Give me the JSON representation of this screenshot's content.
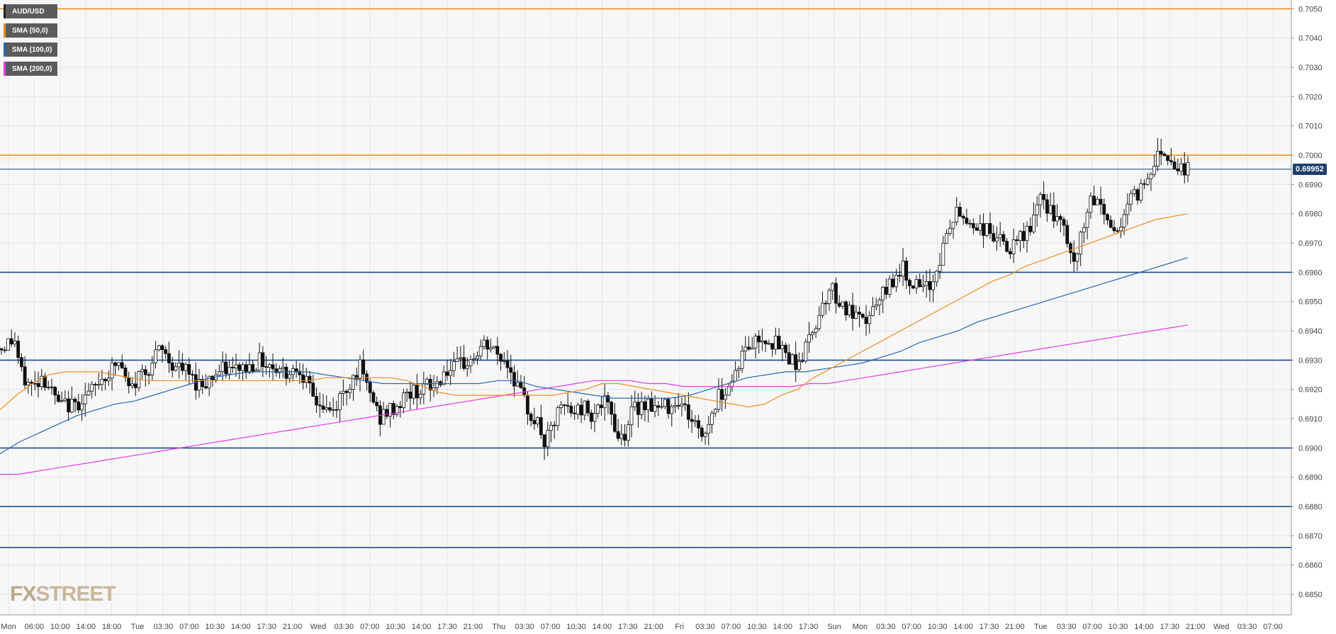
{
  "chart_data": {
    "type": "candlestick",
    "instrument": "AUD/USD",
    "ylim": [
      0.6843,
      0.7053
    ],
    "y_ticks": [
      "0.7050",
      "0.7040",
      "0.7030",
      "0.7020",
      "0.7010",
      "0.7000",
      "0.6990",
      "0.6980",
      "0.6970",
      "0.6960",
      "0.6950",
      "0.6940",
      "0.6930",
      "0.6920",
      "0.6910",
      "0.6900",
      "0.6890",
      "0.6880",
      "0.6870",
      "0.6860",
      "0.6850"
    ],
    "x_ticks": [
      "Mon",
      "06:00",
      "10:00",
      "14:00",
      "18:00",
      "Tue",
      "03:30",
      "07:00",
      "10:30",
      "14:00",
      "17:30",
      "21:00",
      "Wed",
      "03:30",
      "07:00",
      "10:30",
      "14:00",
      "17:30",
      "21:00",
      "Thu",
      "03:30",
      "07:00",
      "10:30",
      "14:00",
      "17:30",
      "21:00",
      "Fri",
      "03:30",
      "07:00",
      "10:30",
      "14:00",
      "17:30",
      "Sun",
      "Mon",
      "03:30",
      "07:00",
      "10:30",
      "14:00",
      "17:30",
      "21:00",
      "Tue",
      "03:30",
      "07:00",
      "10:30",
      "14:00",
      "17:30",
      "21:00",
      "Wed",
      "03:30",
      "07:00"
    ],
    "current_price": "0.69952",
    "current_value": 0.69952,
    "legend": [
      {
        "label": "AUD/USD",
        "color": "#222222"
      },
      {
        "label": "SMA (50,0)",
        "color": "#f08c1a"
      },
      {
        "label": "SMA (100,0)",
        "color": "#2a66b0"
      },
      {
        "label": "SMA (200,0)",
        "color": "#e63ce6"
      }
    ],
    "horizontal_levels": [
      {
        "value": 0.705,
        "color": "#f08c1a"
      },
      {
        "value": 0.7,
        "color": "#f08c1a"
      },
      {
        "value": 0.696,
        "color": "#1e4e8c"
      },
      {
        "value": 0.693,
        "color": "#1e4e8c"
      },
      {
        "value": 0.69,
        "color": "#1e4e8c"
      },
      {
        "value": 0.688,
        "color": "#1e4e8c"
      },
      {
        "value": 0.6866,
        "color": "#1e4e8c"
      }
    ],
    "close_path": [
      0.6934,
      0.6936,
      0.6937,
      0.6925,
      0.6922,
      0.6921,
      0.6925,
      0.6922,
      0.6917,
      0.6914,
      0.6915,
      0.6914,
      0.6917,
      0.6918,
      0.692,
      0.6924,
      0.6925,
      0.6928,
      0.6929,
      0.692,
      0.6921,
      0.6926,
      0.6927,
      0.693,
      0.6934,
      0.6931,
      0.6928,
      0.6927,
      0.6926,
      0.6923,
      0.6922,
      0.6923,
      0.6925,
      0.6926,
      0.6927,
      0.6926,
      0.6928,
      0.6927,
      0.6929,
      0.693,
      0.6929,
      0.6928,
      0.6927,
      0.6926,
      0.6927,
      0.6928,
      0.6922,
      0.6917,
      0.6915,
      0.6913,
      0.6912,
      0.6917,
      0.692,
      0.6924,
      0.6928,
      0.6921,
      0.6917,
      0.691,
      0.6912,
      0.6913,
      0.6915,
      0.6918,
      0.6919,
      0.692,
      0.6921,
      0.692,
      0.6923,
      0.6927,
      0.6926,
      0.6928,
      0.6929,
      0.693,
      0.6933,
      0.6935,
      0.6934,
      0.6931,
      0.693,
      0.6926,
      0.692,
      0.6915,
      0.6911,
      0.6908,
      0.6901,
      0.6906,
      0.6912,
      0.6914,
      0.6912,
      0.6913,
      0.6914,
      0.6912,
      0.6914,
      0.6915,
      0.6912,
      0.6904,
      0.6905,
      0.6912,
      0.6914,
      0.6916,
      0.6915,
      0.6913,
      0.6914,
      0.6915,
      0.6917,
      0.6914,
      0.691,
      0.6907,
      0.6904,
      0.6911,
      0.6917,
      0.692,
      0.6922,
      0.6928,
      0.6933,
      0.6935,
      0.6937,
      0.6938,
      0.6937,
      0.6935,
      0.6933,
      0.6931,
      0.6929,
      0.6932,
      0.6938,
      0.6944,
      0.695,
      0.6955,
      0.6952,
      0.6948,
      0.6946,
      0.6944,
      0.6942,
      0.6946,
      0.6948,
      0.6952,
      0.6956,
      0.696,
      0.6961,
      0.6958,
      0.6955,
      0.6953,
      0.6955,
      0.696,
      0.6968,
      0.6975,
      0.698,
      0.6979,
      0.6977,
      0.6976,
      0.6975,
      0.6974,
      0.6972,
      0.697,
      0.6967,
      0.6969,
      0.6972,
      0.6975,
      0.698,
      0.6985,
      0.6982,
      0.6978,
      0.6975,
      0.697,
      0.696,
      0.6975,
      0.6982,
      0.6985,
      0.6983,
      0.6977,
      0.6973,
      0.6978,
      0.6984,
      0.6986,
      0.6989,
      0.6993,
      0.6999,
      0.7002,
      0.7,
      0.6997,
      0.6996,
      0.6995
    ],
    "sma50_path": [
      0.6913,
      0.6918,
      0.6922,
      0.6925,
      0.6926,
      0.6926,
      0.6926,
      0.6925,
      0.6924,
      0.6923,
      0.6923,
      0.6923,
      0.6923,
      0.6923,
      0.6923,
      0.6923,
      0.6923,
      0.6923,
      0.6923,
      0.6923,
      0.6924,
      0.6924,
      0.6924,
      0.6924,
      0.6924,
      0.6923,
      0.6921,
      0.6919,
      0.6918,
      0.6918,
      0.6918,
      0.6918,
      0.6918,
      0.6918,
      0.6918,
      0.6919,
      0.692,
      0.6922,
      0.6922,
      0.6921,
      0.692,
      0.6919,
      0.6918,
      0.6917,
      0.6916,
      0.6915,
      0.6914,
      0.6915,
      0.6918,
      0.692,
      0.6924,
      0.6927,
      0.693,
      0.6933,
      0.6936,
      0.6939,
      0.6942,
      0.6945,
      0.6948,
      0.6951,
      0.6954,
      0.6957,
      0.6959,
      0.6962,
      0.6964,
      0.6966,
      0.6968,
      0.697,
      0.6972,
      0.6974,
      0.6976,
      0.6978,
      0.6979,
      0.698
    ],
    "sma100_path": [
      0.6898,
      0.6902,
      0.6905,
      0.6908,
      0.6911,
      0.6913,
      0.6915,
      0.6916,
      0.6918,
      0.692,
      0.6922,
      0.6924,
      0.6925,
      0.6926,
      0.6926,
      0.6926,
      0.6926,
      0.6925,
      0.6924,
      0.6923,
      0.6922,
      0.6922,
      0.6922,
      0.6922,
      0.6922,
      0.6922,
      0.6923,
      0.6923,
      0.6921,
      0.692,
      0.6919,
      0.6918,
      0.6917,
      0.6917,
      0.6917,
      0.6917,
      0.6918,
      0.692,
      0.6922,
      0.6924,
      0.6925,
      0.6926,
      0.6926,
      0.6927,
      0.6928,
      0.6929,
      0.6931,
      0.6933,
      0.6936,
      0.6938,
      0.694,
      0.6943,
      0.6945,
      0.6947,
      0.6949,
      0.6951,
      0.6953,
      0.6955,
      0.6957,
      0.6959,
      0.6961,
      0.6963,
      0.6965
    ],
    "sma200_path": [
      0.6891,
      0.6891,
      0.6892,
      0.6893,
      0.6894,
      0.6895,
      0.6896,
      0.6897,
      0.6898,
      0.6899,
      0.69,
      0.6901,
      0.6902,
      0.6903,
      0.6904,
      0.6905,
      0.6906,
      0.6907,
      0.6908,
      0.6909,
      0.691,
      0.6911,
      0.6912,
      0.6913,
      0.6914,
      0.6915,
      0.6916,
      0.6917,
      0.6918,
      0.6919,
      0.692,
      0.6921,
      0.6922,
      0.6923,
      0.6923,
      0.6923,
      0.6922,
      0.6922,
      0.6921,
      0.6921,
      0.6921,
      0.6921,
      0.6921,
      0.6921,
      0.6921,
      0.6922,
      0.6922,
      0.6923,
      0.6924,
      0.6925,
      0.6926,
      0.6927,
      0.6928,
      0.6929,
      0.693,
      0.6931,
      0.6932,
      0.6933,
      0.6934,
      0.6935,
      0.6936,
      0.6937,
      0.6938,
      0.6939,
      0.694,
      0.6941,
      0.6942
    ],
    "grid": true
  },
  "logo": {
    "prefix": "FX",
    "suffix": "STREET"
  }
}
